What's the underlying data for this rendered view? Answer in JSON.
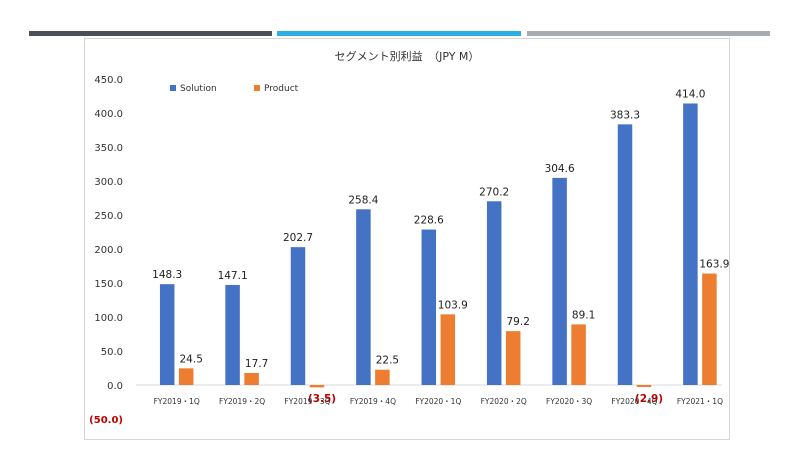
{
  "chart_data": {
    "type": "bar",
    "title": "セグメント別利益　（JPY M）",
    "categories": [
      "FY2019・1Q",
      "FY2019・2Q",
      "FY2019・3Q",
      "FY2019・4Q",
      "FY2020・1Q",
      "FY2020・2Q",
      "FY2020・3Q",
      "FY2020・4Q",
      "FY2021・1Q"
    ],
    "series": [
      {
        "name": "Solution",
        "color": "#4472c4",
        "values": [
          148.3,
          147.1,
          202.7,
          258.4,
          228.6,
          270.2,
          304.6,
          383.3,
          414.0
        ],
        "labels": [
          "148.3",
          "147.1",
          "202.7",
          "258.4",
          "228.6",
          "270.2",
          "304.6",
          "383.3",
          "414.0"
        ]
      },
      {
        "name": "Product",
        "color": "#ed7d31",
        "values": [
          24.5,
          17.7,
          -3.5,
          22.5,
          103.9,
          79.2,
          89.1,
          -2.9,
          163.9
        ],
        "labels": [
          "24.5",
          "17.7",
          "(3.5)",
          "22.5",
          "103.9",
          "79.2",
          "89.1",
          "(2.9)",
          "163.9"
        ]
      }
    ],
    "yticks": [
      "(50.0)",
      "0.0",
      "50.0",
      "100.0",
      "150.0",
      "200.0",
      "250.0",
      "300.0",
      "350.0",
      "400.0",
      "450.0"
    ],
    "ylim": [
      -50,
      450
    ],
    "negative_color": "#c00000",
    "legend_position": "top-left",
    "grid": false
  }
}
